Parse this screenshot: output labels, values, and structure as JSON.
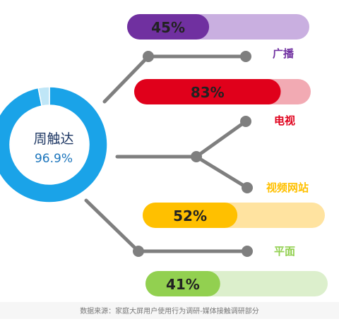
{
  "chart_data": {
    "type": "bar",
    "center": {
      "label": "周触达",
      "value": 96.9,
      "value_text": "96.9%",
      "ring_color": "#1aa3e8",
      "gap_color": "#bfe6f7"
    },
    "categories": [
      "广播",
      "电视",
      "视频网站",
      "平面"
    ],
    "values": [
      45,
      83,
      52,
      41
    ],
    "value_labels": [
      "45%",
      "83%",
      "52%",
      "41%"
    ],
    "bar_colors": [
      "#7030a0",
      "#e0001b",
      "#ffc000",
      "#92d050"
    ],
    "track_colors": [
      "#c9afe0",
      "#f2aab3",
      "#ffe3a0",
      "#dcefcc"
    ],
    "label_colors": [
      "#7030a0",
      "#e0001b",
      "#ffc000",
      "#92d050"
    ],
    "connector_color": "#7f7f7f",
    "xlim": [
      0,
      100
    ]
  },
  "footer": {
    "source": "数据来源：家庭大屏用户使用行为调研-媒体接触调研部分"
  }
}
